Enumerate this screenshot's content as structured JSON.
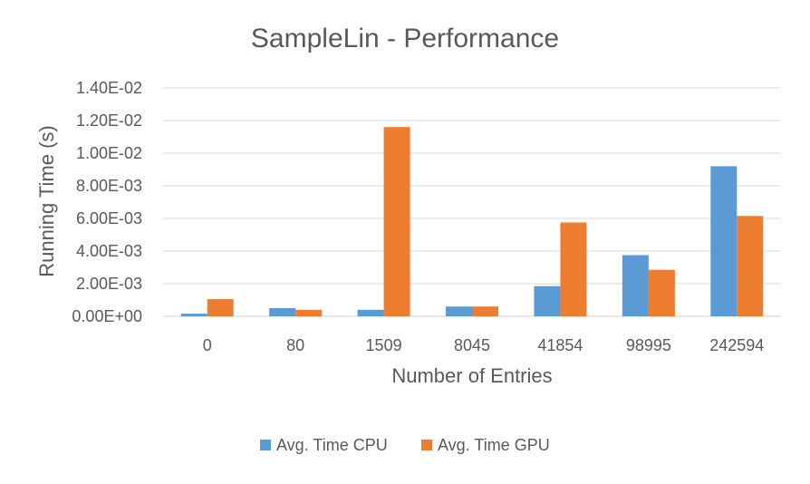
{
  "chart_data": {
    "type": "bar",
    "title": "SampleLin - Performance",
    "xlabel": "Number of Entries",
    "ylabel": "Running Time (s)",
    "categories": [
      "0",
      "80",
      "1509",
      "8045",
      "41854",
      "98995",
      "242594"
    ],
    "ylim": [
      0,
      0.014
    ],
    "y_ticks": [
      0,
      0.002,
      0.004,
      0.006,
      0.008,
      0.01,
      0.012,
      0.014
    ],
    "y_tick_labels": [
      "0.00E+00",
      "2.00E-03",
      "4.00E-03",
      "6.00E-03",
      "8.00E-03",
      "1.00E-02",
      "1.20E-02",
      "1.40E-02"
    ],
    "grid": true,
    "legend_position": "bottom",
    "series": [
      {
        "name": "Avg. Time CPU",
        "color": "#5B9BD5",
        "values": [
          0.00016,
          0.0005,
          0.0004,
          0.0006,
          0.00185,
          0.00375,
          0.0092
        ]
      },
      {
        "name": "Avg. Time GPU",
        "color": "#ED7D31",
        "values": [
          0.00105,
          0.0004,
          0.0116,
          0.0006,
          0.00575,
          0.00285,
          0.00615
        ]
      }
    ]
  }
}
